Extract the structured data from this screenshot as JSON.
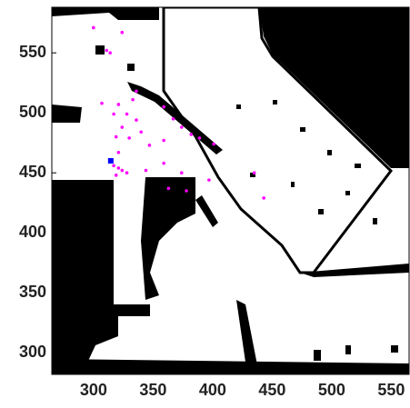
{
  "chart_data": {
    "type": "scatter",
    "xlim": [
      265,
      565
    ],
    "ylim": [
      282,
      588
    ],
    "xticks": [
      300,
      350,
      400,
      450,
      500,
      550
    ],
    "yticks": [
      300,
      350,
      400,
      450,
      500,
      550
    ],
    "series": [
      {
        "color": "#ff00ff",
        "marker": "circle",
        "x": [
          300,
          311,
          314,
          324,
          336,
          333,
          321,
          307,
          317,
          328,
          336,
          324,
          340,
          319,
          330,
          347,
          321,
          359,
          317,
          321,
          324,
          319,
          328,
          344,
          374,
          397,
          363,
          378,
          443,
          359,
          367,
          374,
          382,
          389,
          401,
          359,
          435
        ],
        "values": [
          571,
          552,
          550,
          567,
          518,
          511,
          507,
          508,
          499,
          499,
          494,
          488,
          484,
          480,
          479,
          473,
          467,
          458,
          456,
          454,
          452,
          448,
          450,
          452,
          450,
          444,
          437,
          435,
          429,
          505,
          495,
          488,
          482,
          479,
          474,
          477,
          450
        ]
      },
      {
        "color": "#0000ff",
        "marker": "square",
        "x": [
          314.5
        ],
        "values": [
          460
        ]
      }
    ]
  }
}
